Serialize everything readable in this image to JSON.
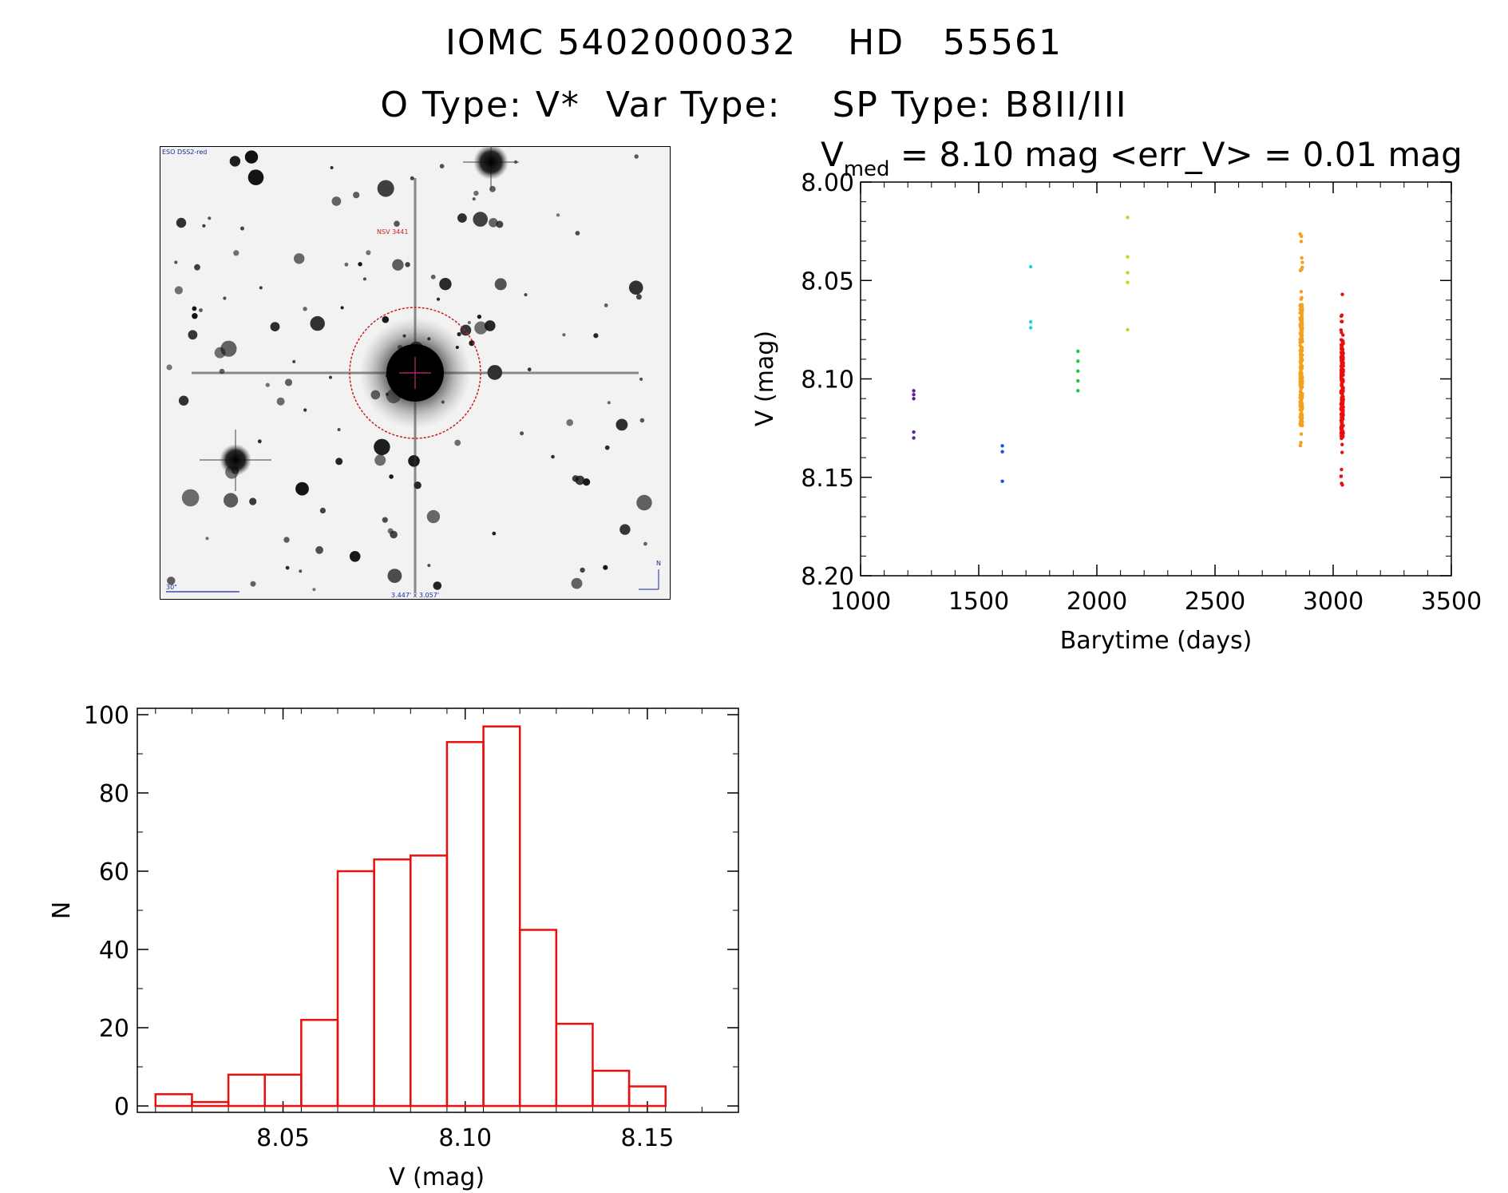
{
  "header": {
    "title_line1": "IOMC 5402000032    HD   55561",
    "title_line2": "O Type: V*  Var Type:    SP Type: B8II/III"
  },
  "finder_chart": {
    "survey_label": "ESO DSS2-red",
    "target_label": "NSV 3441",
    "scale_label": "30\"",
    "size_label": "3.447' x 3.057'",
    "north_label": "N"
  },
  "light_curve": {
    "stat_prefix": "V",
    "stat_sub": "med",
    "stat_text": " = 8.10 mag <err_V> = 0.01 mag"
  },
  "chart_data": [
    {
      "type": "scatter",
      "title": "V_med = 8.10 mag <err_V> = 0.01 mag",
      "xlabel": "Barytime (days)",
      "ylabel": "V (mag)",
      "xlim": [
        1000,
        3500
      ],
      "ylim": [
        8.2,
        8.0
      ],
      "y_inverted": true,
      "x_ticks": [
        1000,
        1500,
        2000,
        2500,
        3000,
        3500
      ],
      "y_ticks": [
        "8.00",
        "8.05",
        "8.10",
        "8.15",
        "8.20"
      ],
      "series": [
        {
          "color": "#5a1fa0",
          "points": [
            [
              1225,
              8.106
            ],
            [
              1225,
              8.108
            ],
            [
              1225,
              8.11
            ],
            [
              1225,
              8.127
            ],
            [
              1225,
              8.13
            ]
          ]
        },
        {
          "color": "#1f50e0",
          "points": [
            [
              1600,
              8.134
            ],
            [
              1600,
              8.137
            ],
            [
              1600,
              8.152
            ]
          ]
        },
        {
          "color": "#1fd2dc",
          "points": [
            [
              1720,
              8.043
            ],
            [
              1720,
              8.071
            ],
            [
              1720,
              8.074
            ]
          ]
        },
        {
          "color": "#1fc83c",
          "points": [
            [
              1920,
              8.086
            ],
            [
              1920,
              8.091
            ],
            [
              1920,
              8.096
            ],
            [
              1920,
              8.101
            ],
            [
              1920,
              8.106
            ]
          ]
        },
        {
          "color": "#c8d21f",
          "points": [
            [
              2130,
              8.018
            ],
            [
              2130,
              8.038
            ],
            [
              2130,
              8.046
            ],
            [
              2130,
              8.051
            ],
            [
              2130,
              8.075
            ]
          ]
        },
        {
          "color": "#f4a01f",
          "cluster": {
            "x": 2865,
            "y_min": 8.019,
            "y_max": 8.135,
            "dense_min": 8.062,
            "dense_max": 8.124,
            "count": 240
          }
        },
        {
          "color": "#e80f0f",
          "cluster": {
            "x": 3038,
            "y_min": 8.057,
            "y_max": 8.154,
            "dense_min": 8.08,
            "dense_max": 8.13,
            "count": 220
          }
        }
      ]
    },
    {
      "type": "bar",
      "title": "",
      "xlabel": "V (mag)",
      "ylabel": "N",
      "xlim": [
        8.01,
        8.175
      ],
      "ylim": [
        0,
        100
      ],
      "x_ticks": [
        "8.05",
        "8.10",
        "8.15"
      ],
      "y_ticks": [
        0,
        20,
        40,
        60,
        80,
        100
      ],
      "bin_width": 0.01,
      "bin_starts": [
        8.015,
        8.025,
        8.035,
        8.045,
        8.055,
        8.065,
        8.075,
        8.085,
        8.095,
        8.105,
        8.115,
        8.125,
        8.135,
        8.145
      ],
      "values": [
        3,
        1,
        8,
        8,
        22,
        60,
        63,
        64,
        93,
        97,
        45,
        21,
        9,
        5
      ],
      "bar_color": "#e80f0f"
    }
  ]
}
